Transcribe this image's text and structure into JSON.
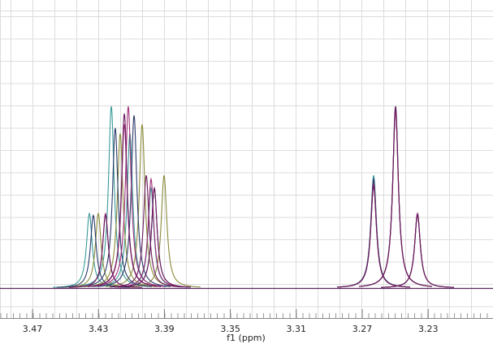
{
  "chart_data": {
    "type": "nmr",
    "xlabel": "f1 (ppm)",
    "xlim": [
      3.4897,
      3.1907
    ],
    "xticks": [
      3.47,
      3.43,
      3.39,
      3.35,
      3.31,
      3.27,
      3.23
    ],
    "ylim": [
      0,
      100
    ],
    "series": [
      {
        "color": "#3a9a9a",
        "x": [
          3.4355,
          3.4222,
          3.4109,
          3.3981,
          3.2631,
          3.2498,
          3.2365
        ],
        "values": [
          41,
          100,
          85,
          55,
          62,
          100,
          41
        ]
      },
      {
        "color": "#8a8a3a",
        "x": [
          3.4301,
          3.4168,
          3.4035,
          3.3902,
          3.2631,
          3.2498,
          3.2365
        ],
        "values": [
          41,
          85,
          90,
          62,
          58,
          98,
          41
        ]
      },
      {
        "color": "#2a3a6a",
        "x": [
          3.4331,
          3.4198,
          3.4084,
          3.3961,
          3.2631,
          3.2498,
          3.2365
        ],
        "values": [
          40,
          88,
          95,
          55,
          60,
          99,
          41
        ]
      },
      {
        "color": "#a0307a",
        "x": [
          3.4257,
          3.4143,
          3.4119,
          3.3981,
          3.2631,
          3.2498,
          3.2365
        ],
        "values": [
          41,
          90,
          100,
          60,
          57,
          97,
          41
        ]
      },
      {
        "color": "#6a1a5e",
        "x": [
          3.4257,
          3.4143,
          3.401,
          3.3961,
          3.2631,
          3.2498,
          3.2365
        ],
        "values": [
          40,
          96,
          62,
          55,
          56,
          100,
          40
        ]
      }
    ]
  }
}
